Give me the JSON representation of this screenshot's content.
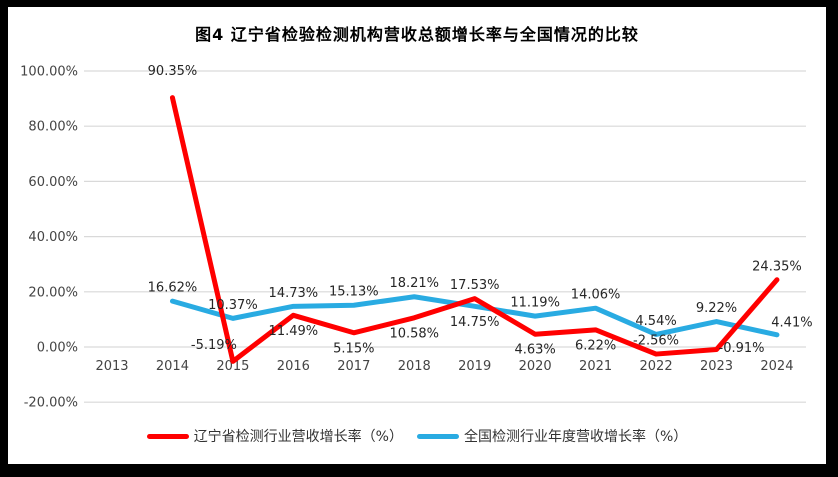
{
  "page": {
    "background_color": "#000000",
    "panel_background_color": "#FFFFFF"
  },
  "chart_data": {
    "type": "line",
    "title": "图4 辽宁省检验检测机构营收总额增长率与全国情况的比较",
    "xlabel": "",
    "ylabel": "",
    "categories": [
      "2013",
      "2014",
      "2015",
      "2016",
      "2017",
      "2018",
      "2019",
      "2020",
      "2021",
      "2022",
      "2023",
      "2024"
    ],
    "ylim": [
      -20,
      100
    ],
    "grid": true,
    "legend_position": "bottom",
    "y_ticks": [
      {
        "value": 100,
        "label": "100.00%"
      },
      {
        "value": 80,
        "label": "80.00%"
      },
      {
        "value": 60,
        "label": "60.00%"
      },
      {
        "value": 40,
        "label": "40.00%"
      },
      {
        "value": 20,
        "label": "20.00%"
      },
      {
        "value": 0,
        "label": "0.00%"
      },
      {
        "value": -20,
        "label": "-20.00%"
      }
    ],
    "style": {
      "gridline_color": "#D9D9D9",
      "tick_text_color": "#444444",
      "data_label_color": "#262626"
    },
    "series": [
      {
        "name": "辽宁省检测行业营收增长率（%）",
        "color": "#FF0000",
        "points": [
          {
            "category": "2014",
            "value": 90.35,
            "label": "90.35%",
            "label_anchor": "above-far"
          },
          {
            "category": "2015",
            "value": -5.19,
            "label": "-5.19%",
            "label_anchor": "left-above"
          },
          {
            "category": "2016",
            "value": 11.49,
            "label": "11.49%",
            "label_anchor": "below"
          },
          {
            "category": "2017",
            "value": 5.15,
            "label": "5.15%",
            "label_anchor": "below"
          },
          {
            "category": "2018",
            "value": 10.58,
            "label": "10.58%",
            "label_anchor": "below"
          },
          {
            "category": "2019",
            "value": 17.53,
            "label": "17.53%",
            "label_anchor": "above"
          },
          {
            "category": "2020",
            "value": 4.63,
            "label": "4.63%",
            "label_anchor": "below"
          },
          {
            "category": "2021",
            "value": 6.22,
            "label": "6.22%",
            "label_anchor": "below"
          },
          {
            "category": "2022",
            "value": -2.56,
            "label": "-2.56%",
            "label_anchor": "above"
          },
          {
            "category": "2023",
            "value": -0.91,
            "label": "-0.91%",
            "label_anchor": "right"
          },
          {
            "category": "2024",
            "value": 24.35,
            "label": "24.35%",
            "label_anchor": "above"
          }
        ]
      },
      {
        "name": "全国检测行业年度营收增长率（%）",
        "color": "#29ABE2",
        "points": [
          {
            "category": "2014",
            "value": 16.62,
            "label": "16.62%",
            "label_anchor": "above"
          },
          {
            "category": "2015",
            "value": 10.37,
            "label": "10.37%",
            "label_anchor": "above"
          },
          {
            "category": "2016",
            "value": 14.73,
            "label": "14.73%",
            "label_anchor": "above"
          },
          {
            "category": "2017",
            "value": 15.13,
            "label": "15.13%",
            "label_anchor": "above"
          },
          {
            "category": "2018",
            "value": 18.21,
            "label": "18.21%",
            "label_anchor": "above"
          },
          {
            "category": "2019",
            "value": 14.75,
            "label": "14.75%",
            "label_anchor": "below"
          },
          {
            "category": "2020",
            "value": 11.19,
            "label": "11.19%",
            "label_anchor": "above"
          },
          {
            "category": "2021",
            "value": 14.06,
            "label": "14.06%",
            "label_anchor": "above"
          },
          {
            "category": "2022",
            "value": 4.54,
            "label": "4.54%",
            "label_anchor": "above"
          },
          {
            "category": "2023",
            "value": 9.22,
            "label": "9.22%",
            "label_anchor": "above"
          },
          {
            "category": "2024",
            "value": 4.41,
            "label": "4.41%",
            "label_anchor": "above-right"
          }
        ]
      }
    ]
  }
}
